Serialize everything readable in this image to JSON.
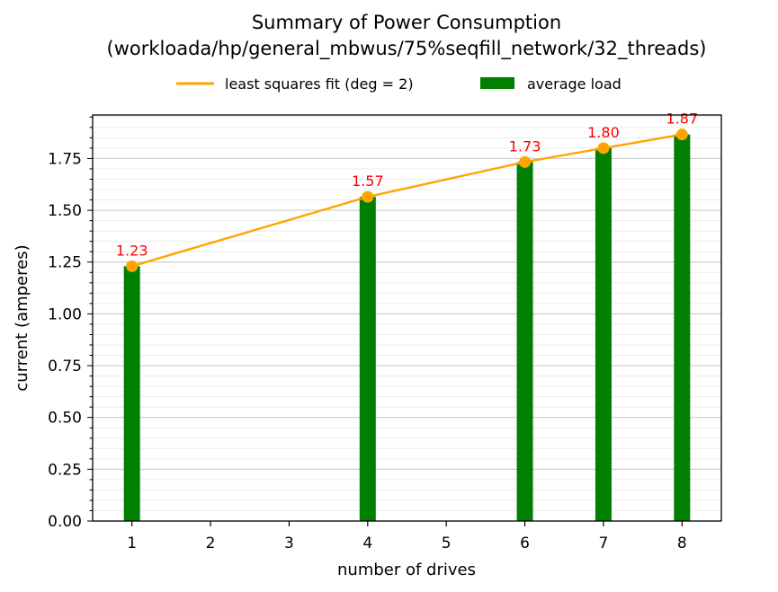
{
  "chart_data": {
    "type": "bar",
    "title": "Summary of Power Consumption",
    "subtitle": "(workloada/hp/general_mbwus/75%seqfill_network/32_threads)",
    "xlabel": "number of drives",
    "ylabel": "current (amperes)",
    "xlim": [
      0.5,
      8.5
    ],
    "ylim": [
      0,
      1.96
    ],
    "x_ticks": [
      "1",
      "2",
      "3",
      "4",
      "5",
      "6",
      "7",
      "8"
    ],
    "y_ticks": [
      "0.00",
      "0.25",
      "0.50",
      "0.75",
      "1.00",
      "1.25",
      "1.50",
      "1.75"
    ],
    "grid": true,
    "legend_position": "top-center",
    "series": [
      {
        "name": "average load",
        "kind": "bar",
        "color": "#008000",
        "x": [
          1,
          4,
          6,
          7,
          8
        ],
        "values": [
          1.23,
          1.565,
          1.733,
          1.8,
          1.866
        ]
      },
      {
        "name": "least squares fit (deg = 2)",
        "kind": "line",
        "color": "#ffa500",
        "x": [
          1,
          4,
          6,
          7,
          8
        ],
        "values": [
          1.23,
          1.565,
          1.733,
          1.8,
          1.866
        ]
      }
    ],
    "data_labels": [
      "1.23",
      "1.57",
      "1.73",
      "1.80",
      "1.87"
    ],
    "data_label_color": "#ff0000"
  }
}
